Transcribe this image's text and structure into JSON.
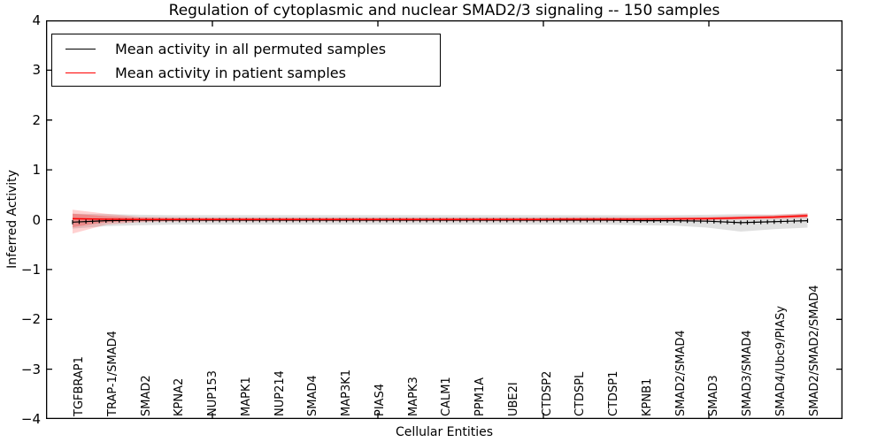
{
  "chart_data": {
    "type": "line",
    "title": "Regulation of cytoplasmic and nuclear SMAD2/3 signaling -- 150 samples",
    "xlabel": "Cellular Entities",
    "ylabel": "Inferred Activity",
    "ylim": [
      -4,
      4
    ],
    "yticks": [
      -4,
      -3,
      -2,
      -1,
      0,
      1,
      2,
      3,
      4
    ],
    "grid": false,
    "legend_position": "upper left",
    "background_color": "#ffffff",
    "axis_color": "#000000",
    "points_per_category": 5,
    "marker": "+",
    "categories": [
      "TGFBRAP1",
      "TRAP-1/SMAD4",
      "SMAD2",
      "KPNA2",
      "NUP153",
      "MAPK1",
      "NUP214",
      "SMAD4",
      "MAP3K1",
      "PIAS4",
      "MAPK3",
      "CALM1",
      "PPM1A",
      "UBE2I",
      "CTDSP2",
      "CTDSPL",
      "CTDSP1",
      "KPNB1",
      "SMAD2/SMAD4",
      "SMAD3",
      "SMAD3/SMAD4",
      "SMAD4/Ubc9/PIASy",
      "SMAD2/SMAD2/SMAD4"
    ],
    "series": [
      {
        "name": "Mean activity in all permuted samples",
        "color": "#000000",
        "band_color": "#000000",
        "band_alpha": 0.12,
        "values": [
          -0.05,
          -0.02,
          -0.01,
          -0.01,
          -0.01,
          -0.01,
          -0.01,
          -0.01,
          -0.01,
          -0.01,
          -0.01,
          -0.01,
          -0.01,
          -0.01,
          -0.01,
          -0.01,
          -0.01,
          -0.02,
          -0.02,
          -0.03,
          -0.06,
          -0.04,
          -0.02
        ],
        "band_lo": [
          -0.18,
          -0.13,
          -0.11,
          -0.1,
          -0.1,
          -0.1,
          -0.1,
          -0.1,
          -0.1,
          -0.1,
          -0.1,
          -0.1,
          -0.1,
          -0.1,
          -0.1,
          -0.1,
          -0.1,
          -0.11,
          -0.12,
          -0.16,
          -0.24,
          -0.19,
          -0.16
        ],
        "band_hi": [
          0.12,
          0.11,
          0.1,
          0.09,
          0.09,
          0.09,
          0.09,
          0.09,
          0.09,
          0.09,
          0.09,
          0.09,
          0.09,
          0.09,
          0.09,
          0.09,
          0.09,
          0.09,
          0.09,
          0.1,
          0.11,
          0.1,
          0.12
        ]
      },
      {
        "name": "Mean activity in patient samples",
        "color": "#ff0000",
        "band_color": "#ff0000",
        "band_alpha": 0.18,
        "values": [
          0.02,
          0.01,
          0.005,
          0.005,
          0.005,
          0.005,
          0.005,
          0.005,
          0.005,
          0.005,
          0.005,
          0.005,
          0.005,
          0.005,
          0.005,
          0.01,
          0.01,
          0.01,
          0.015,
          0.02,
          0.035,
          0.05,
          0.08
        ],
        "band_outer_lo": [
          -0.28,
          -0.1,
          -0.05,
          -0.04,
          -0.035,
          -0.035,
          -0.035,
          -0.035,
          -0.035,
          -0.035,
          -0.035,
          -0.035,
          -0.035,
          -0.035,
          -0.035,
          -0.03,
          -0.03,
          -0.03,
          -0.025,
          -0.02,
          0.0,
          0.01,
          0.03
        ],
        "band_outer_hi": [
          0.2,
          0.12,
          0.06,
          0.05,
          0.045,
          0.045,
          0.045,
          0.045,
          0.045,
          0.045,
          0.045,
          0.045,
          0.045,
          0.045,
          0.045,
          0.05,
          0.05,
          0.05,
          0.055,
          0.06,
          0.08,
          0.1,
          0.13
        ],
        "band_inner_lo": [
          -0.15,
          -0.05,
          -0.03,
          -0.02,
          -0.02,
          -0.02,
          -0.02,
          -0.02,
          -0.02,
          -0.02,
          -0.02,
          -0.02,
          -0.02,
          -0.02,
          -0.02,
          -0.015,
          -0.015,
          -0.015,
          -0.01,
          0.0,
          0.015,
          0.03,
          0.05
        ],
        "band_inner_hi": [
          0.12,
          0.07,
          0.04,
          0.03,
          0.03,
          0.03,
          0.03,
          0.03,
          0.03,
          0.03,
          0.03,
          0.03,
          0.03,
          0.03,
          0.03,
          0.035,
          0.035,
          0.035,
          0.04,
          0.045,
          0.06,
          0.075,
          0.11
        ]
      }
    ]
  }
}
